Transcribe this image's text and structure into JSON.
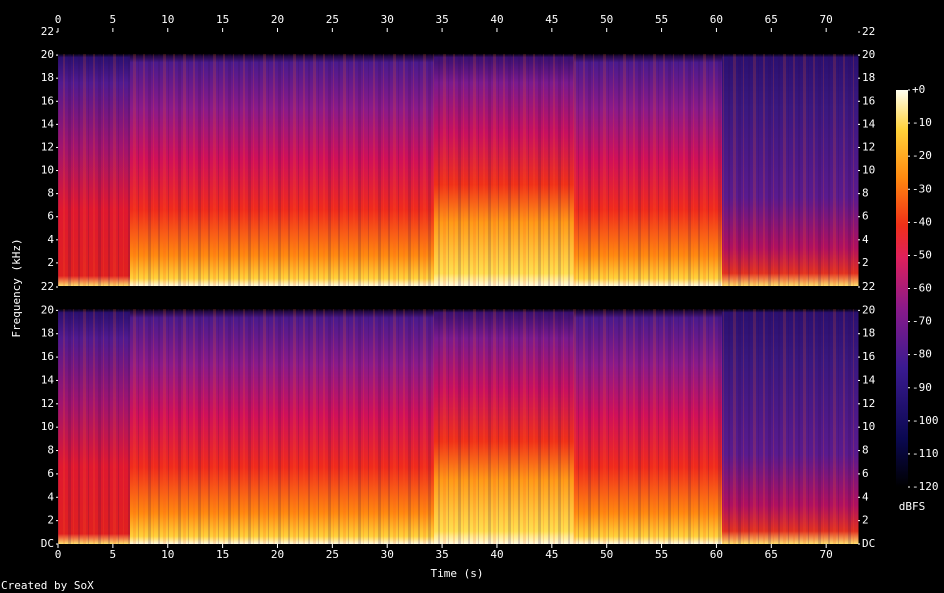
{
  "chart_data": {
    "type": "spectrogram",
    "xlabel": "Time (s)",
    "ylabel": "Frequency (kHz)",
    "xlim": [
      0,
      72.9
    ],
    "xticks": [
      0,
      5,
      10,
      15,
      20,
      25,
      30,
      35,
      40,
      45,
      50,
      55,
      60,
      65,
      70
    ],
    "ylim": [
      0,
      22
    ],
    "yticks": [
      {
        "value": 0,
        "label": "DC"
      },
      2,
      4,
      6,
      8,
      10,
      12,
      14,
      16,
      18,
      20,
      22
    ],
    "colorbar": {
      "label": "dBFS",
      "lim": [
        -120,
        0
      ],
      "ticks": [
        {
          "value": 0,
          "label": "+0"
        },
        -10,
        -20,
        -30,
        -40,
        -50,
        -60,
        -70,
        -80,
        -90,
        -100,
        -110,
        -120
      ]
    },
    "credit": "Created by SoX"
  }
}
